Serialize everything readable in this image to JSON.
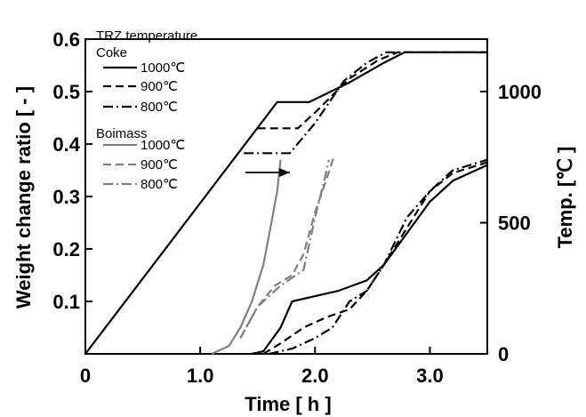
{
  "chart_data": {
    "type": "line",
    "xlabel": "Time  [ h ]",
    "ylabel": "Weight change ratio  [ - ]",
    "y2label": "Temp.  [℃ ]",
    "xlim": [
      0,
      3.5
    ],
    "ylim": [
      0,
      0.6
    ],
    "y2lim": [
      0,
      1200
    ],
    "x_ticks": [
      "0",
      "1.0",
      "2.0",
      "3.0"
    ],
    "y_ticks": [
      "0.1",
      "0.2",
      "0.3",
      "0.4",
      "0.5",
      "0.6"
    ],
    "y2_ticks": [
      "0",
      "500",
      "1000"
    ],
    "grid": false,
    "legend": {
      "position": "top-left",
      "title": "TRZ temperature",
      "group1": "Coke",
      "group2": "Boimass",
      "coke_labels": [
        "1000℃",
        "900℃",
        "800℃"
      ],
      "biomass_labels": [
        "1000℃",
        "900℃",
        "800℃"
      ]
    },
    "colors": {
      "coke": "#000000",
      "biomass": "#808080"
    },
    "series": [
      {
        "group": "temperature",
        "dash": "solid",
        "axis": "right",
        "x": [
          0,
          1.67,
          1.95,
          2.3,
          2.6,
          2.78,
          3.5
        ],
        "y": [
          0,
          960,
          960,
          1035,
          1110,
          1150,
          1150
        ]
      },
      {
        "group": "temperature",
        "dash": "dash",
        "axis": "right",
        "x": [
          1.5,
          1.85,
          2.0,
          2.3,
          2.55,
          2.72,
          3.5
        ],
        "y": [
          860,
          860,
          920,
          1050,
          1120,
          1150,
          1150
        ]
      },
      {
        "group": "temperature",
        "dash": "dashdot",
        "axis": "right",
        "x": [
          1.38,
          1.78,
          2.0,
          2.25,
          2.45,
          2.62,
          3.5
        ],
        "y": [
          765,
          765,
          880,
          1040,
          1110,
          1150,
          1150
        ]
      },
      {
        "group": "coke",
        "dash": "solid",
        "axis": "left",
        "x": [
          1.45,
          1.55,
          1.7,
          1.8,
          2.0,
          2.2,
          2.45,
          2.6,
          2.8,
          3.0,
          3.2,
          3.5
        ],
        "y": [
          0,
          0.005,
          0.05,
          0.1,
          0.11,
          0.12,
          0.14,
          0.17,
          0.23,
          0.29,
          0.33,
          0.36
        ]
      },
      {
        "group": "coke",
        "dash": "dash",
        "axis": "left",
        "x": [
          1.55,
          1.7,
          1.9,
          2.1,
          2.3,
          2.45,
          2.6,
          2.8,
          3.0,
          3.2,
          3.5
        ],
        "y": [
          0,
          0.02,
          0.05,
          0.07,
          0.085,
          0.12,
          0.17,
          0.24,
          0.31,
          0.345,
          0.365
        ]
      },
      {
        "group": "coke",
        "dash": "dashdot",
        "axis": "left",
        "x": [
          1.6,
          1.8,
          2.0,
          2.15,
          2.3,
          2.45,
          2.6,
          2.8,
          3.0,
          3.2,
          3.5
        ],
        "y": [
          0,
          0.01,
          0.03,
          0.05,
          0.1,
          0.12,
          0.17,
          0.26,
          0.31,
          0.35,
          0.37
        ]
      },
      {
        "group": "biomass",
        "dash": "solid",
        "axis": "left",
        "x": [
          1.1,
          1.25,
          1.35,
          1.45,
          1.55,
          1.62,
          1.67,
          1.7
        ],
        "y": [
          0,
          0.015,
          0.05,
          0.1,
          0.17,
          0.25,
          0.31,
          0.37
        ]
      },
      {
        "group": "biomass",
        "dash": "dash",
        "axis": "left",
        "x": [
          1.35,
          1.5,
          1.65,
          1.8,
          1.9,
          2.0,
          2.08,
          2.14,
          2.17
        ],
        "y": [
          0.03,
          0.09,
          0.13,
          0.15,
          0.19,
          0.27,
          0.32,
          0.36,
          0.38
        ]
      },
      {
        "group": "biomass",
        "dash": "dashdot",
        "axis": "left",
        "x": [
          1.35,
          1.5,
          1.7,
          1.9,
          2.0,
          2.08,
          2.12
        ],
        "y": [
          0.03,
          0.09,
          0.13,
          0.16,
          0.26,
          0.33,
          0.37
        ]
      }
    ]
  }
}
